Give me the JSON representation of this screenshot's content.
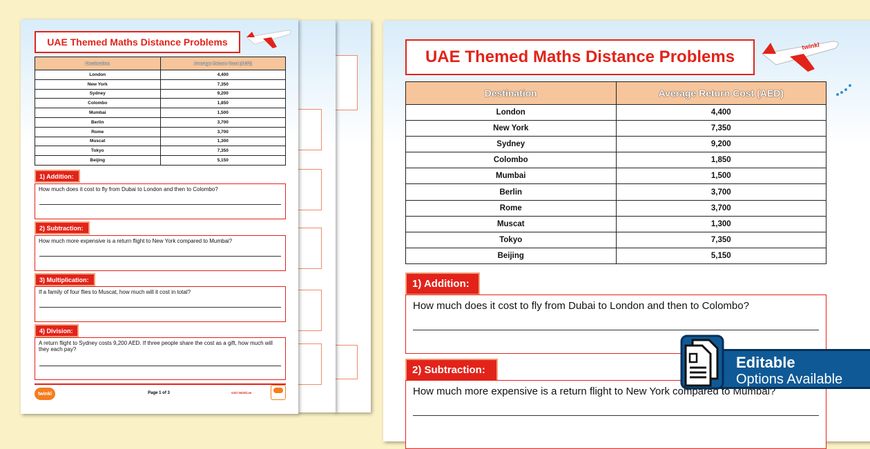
{
  "worksheet": {
    "title": "UAE Themed Maths Distance Problems",
    "table": {
      "headers": [
        "Destination",
        "Average Return Cost (AED)"
      ],
      "rows": [
        [
          "London",
          "4,400"
        ],
        [
          "New York",
          "7,350"
        ],
        [
          "Sydney",
          "9,200"
        ],
        [
          "Colombo",
          "1,850"
        ],
        [
          "Mumbai",
          "1,500"
        ],
        [
          "Berlin",
          "3,700"
        ],
        [
          "Rome",
          "3,700"
        ],
        [
          "Muscat",
          "1,300"
        ],
        [
          "Tokyo",
          "7,350"
        ],
        [
          "Beijing",
          "5,150"
        ]
      ]
    },
    "sections": [
      {
        "label": "1) Addition:",
        "question": "How much does it cost to fly from Dubai to London and then to Colombo?"
      },
      {
        "label": "2) Subtraction:",
        "question": "How much more expensive is a return flight to New York compared to Mumbai?"
      },
      {
        "label": "3) Multiplication:",
        "question": "If a family of four flies to Muscat, how much will it cost in total?"
      },
      {
        "label": "4) Division:",
        "question": "A return flight to Sydney costs 9,200 AED. If three people share the cost as a gift, how much will they each pay?"
      }
    ],
    "footer": {
      "page": "Page 1 of 3",
      "logo": "twinkl",
      "url": "visit twinkl.ae"
    }
  },
  "badge": {
    "line1": "Editable",
    "line2": "Options Available",
    "icon": "document-icon"
  },
  "colors": {
    "accent": "#e2231a",
    "header": "#f7c59b",
    "background": "#fbf1c6",
    "badge": "#0f5a96"
  }
}
